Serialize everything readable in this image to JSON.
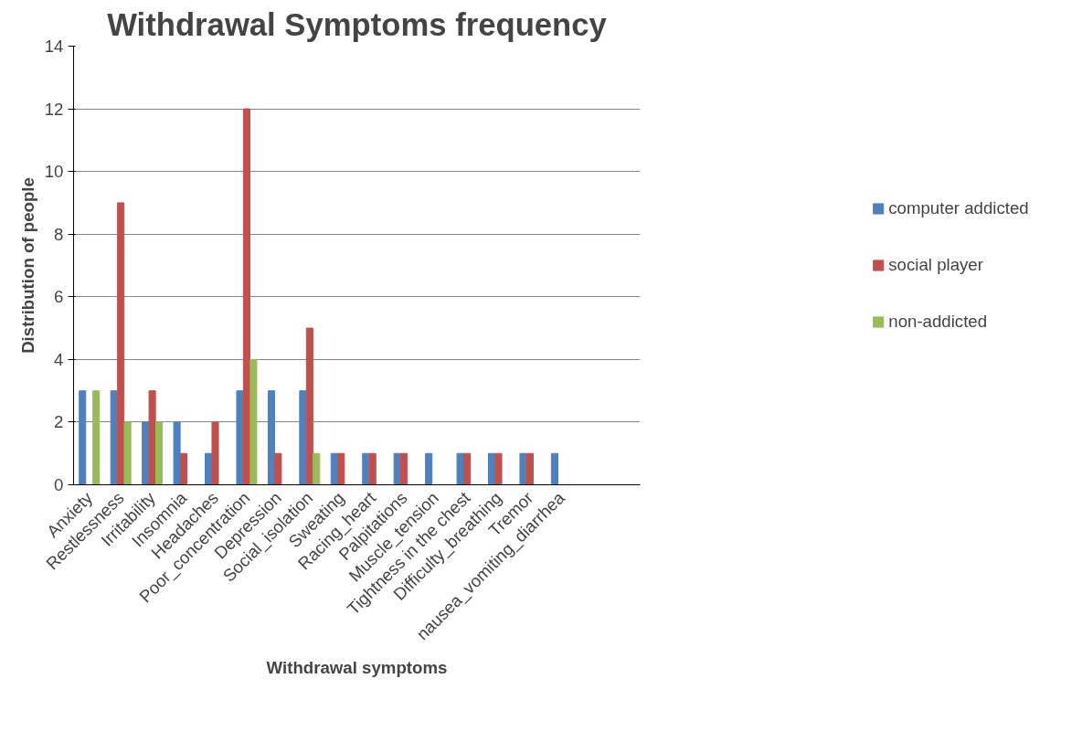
{
  "chart_data": {
    "type": "bar",
    "title": "Withdrawal Symptoms frequency",
    "xlabel": "Withdrawal symptoms",
    "ylabel": "Distribution of people",
    "categories": [
      "Anxiety",
      "Restlessness",
      "Irritability",
      "Insomnia",
      "Headaches",
      "Poor_concentration",
      "Depression",
      "Social_isolation",
      "Sweating",
      "Racing_heart",
      "Palpitations",
      "Muscle_tension",
      "Tightness in the chest",
      "Difficulty_breathing",
      "Tremor",
      "nausea_vomiting_diarrhea",
      null,
      null
    ],
    "series": [
      {
        "name": "computer addicted",
        "color": "#4f81bd",
        "values": [
          3,
          3,
          2,
          2,
          1,
          3,
          3,
          3,
          1,
          1,
          1,
          1,
          1,
          1,
          1,
          1,
          null,
          null
        ]
      },
      {
        "name": "social player",
        "color": "#c0504d",
        "values": [
          0,
          9,
          3,
          1,
          2,
          12,
          1,
          5,
          1,
          1,
          1,
          0,
          1,
          1,
          1,
          0,
          null,
          null
        ]
      },
      {
        "name": "non-addicted",
        "color": "#9bbb59",
        "values": [
          3,
          2,
          2,
          0,
          0,
          4,
          0,
          1,
          0,
          0,
          0,
          0,
          0,
          0,
          0,
          0,
          null,
          null
        ]
      }
    ],
    "ylim": [
      0,
      14
    ],
    "yticks": [
      0,
      2,
      4,
      6,
      8,
      10,
      12,
      14
    ],
    "grid": "y",
    "legend": "right"
  }
}
